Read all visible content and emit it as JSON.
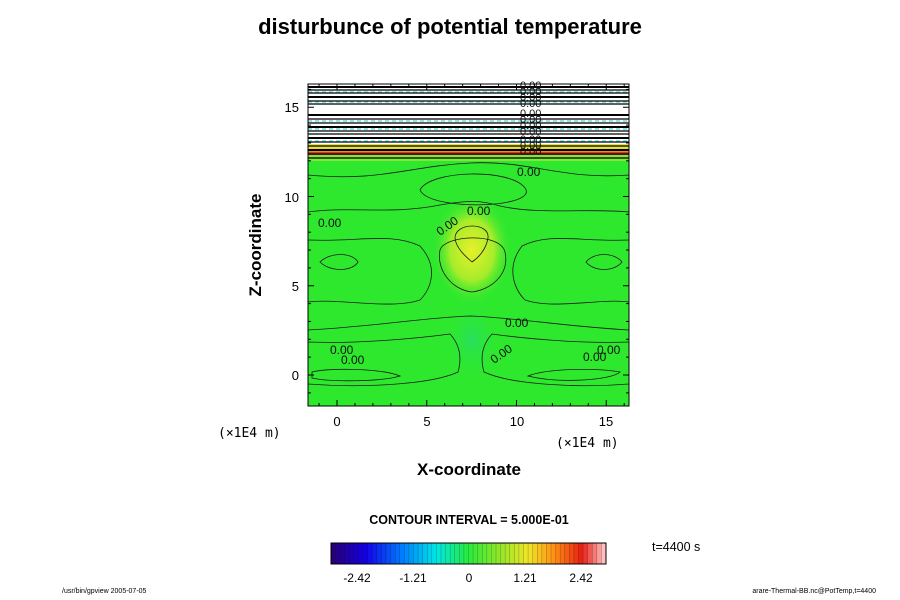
{
  "chart_data": {
    "type": "heatmap",
    "title": "disturbunce of potential temperature",
    "xlabel": "X-coordinate",
    "ylabel": "Z-coordinate",
    "x_unit": "(×1E4 m)",
    "y_unit": "(×1E4 m)",
    "xlim": [
      -1.6,
      16.2
    ],
    "ylim": [
      -1.7,
      16.5
    ],
    "x_ticks": [
      "0",
      "5",
      "10",
      "15"
    ],
    "y_ticks": [
      "0",
      "5",
      "10",
      "15"
    ],
    "contour_interval": "CONTOUR INTERVAL = 5.000E-01",
    "contour_label": "0.00",
    "colorbar": {
      "min": -2.42,
      "max": 2.42,
      "ticks": [
        "-2.42",
        "-1.21",
        "0",
        "1.21",
        "2.42"
      ]
    },
    "time": "t=4400 s"
  },
  "footer": {
    "left": "/usr/bin/gpview 2005-07-05",
    "right": "arare-Thermal-BB.nc@PotTemp,t=4400"
  },
  "colors": {
    "field": "#2ee82e",
    "field_dark": "#1fd61f",
    "warm_spot": "#c8f02a",
    "contour": "#1a1a1a"
  }
}
